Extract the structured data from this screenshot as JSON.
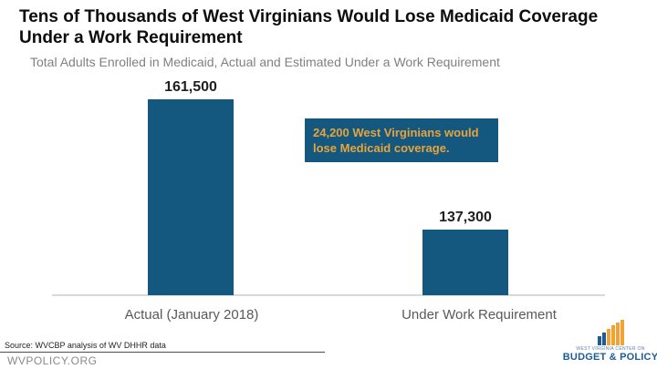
{
  "title": {
    "text": "Tens of Thousands of West Virginians Would Lose Medicaid Coverage Under a Work Requirement",
    "line1": "Tens of Thousands of West Virginians Would Lose Medicaid Coverage",
    "line2": "Under a Work Requirement"
  },
  "subtitle": "Total Adults Enrolled in Medicaid, Actual and Estimated Under a Work Requirement",
  "chart_data": {
    "type": "bar",
    "title": "Total Adults Enrolled in Medicaid, Actual and Estimated Under a Work Requirement",
    "categories": [
      "Actual (January 2018)",
      "Under Work Requirement"
    ],
    "values": [
      161500,
      137300
    ],
    "value_labels": [
      "161,500",
      "137,300"
    ],
    "ylim": [
      125000,
      161500
    ],
    "axis_visible": false,
    "grid": false,
    "legend": false,
    "bar_color": "#14587f",
    "baseline_color": "#d9d9d9",
    "annotation": "24,200 West Virginians would lose Medicaid coverage."
  },
  "callout": {
    "text": "24,200 West Virginians would lose Medicaid coverage.",
    "line1": "24,200 West Virginians would",
    "line2": "lose Medicaid coverage.",
    "bg_color": "#14587f",
    "text_color": "#e8a33c"
  },
  "source_note": "Source: WVCBP analysis of WV DHHR data",
  "footer_url": "WVPOLICY.ORG",
  "logo": {
    "org_line1": "WEST VIRGINIA CENTER ON",
    "org_line2": "BUDGET & POLICY",
    "icon": "ascending-bars-icon",
    "blue": "#1d5c96",
    "gold": "#f2a233"
  }
}
